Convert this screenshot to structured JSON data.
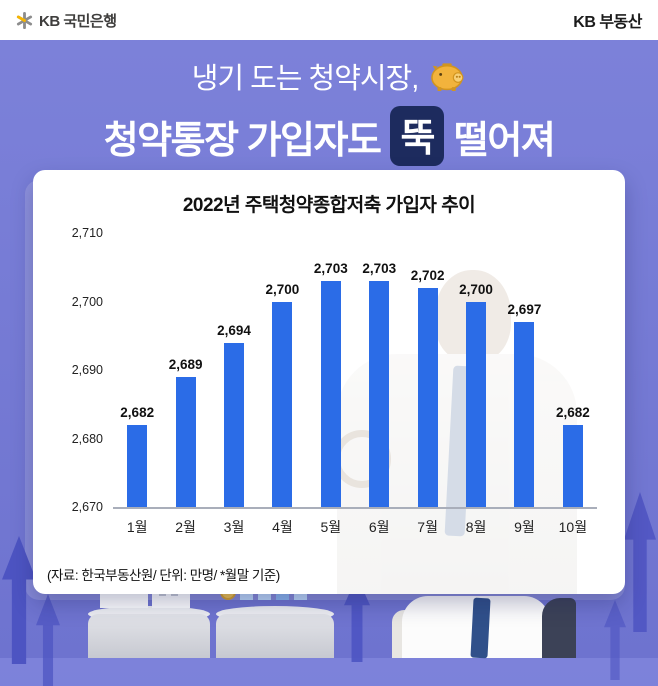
{
  "header": {
    "left_label": "KB 국민은행",
    "right_label": "KB 부동산"
  },
  "hero": {
    "line1": "냉기 도는 청약시장,",
    "line2_before": "청약통장 가입자도",
    "highlight": "뚝",
    "line2_after": "떨어져"
  },
  "chart_data": {
    "type": "bar",
    "title": "2022년 주택청약종합저축 가입자 추이",
    "categories": [
      "1월",
      "2월",
      "3월",
      "4월",
      "5월",
      "6월",
      "7월",
      "8월",
      "9월",
      "10월"
    ],
    "values": [
      2682,
      2689,
      2694,
      2700,
      2703,
      2703,
      2702,
      2700,
      2697,
      2682
    ],
    "value_labels": [
      "2,682",
      "2,689",
      "2,694",
      "2,700",
      "2,703",
      "2,703",
      "2,702",
      "2,700",
      "2,697",
      "2,682"
    ],
    "ylim": [
      2670,
      2710
    ],
    "yticks": [
      2670,
      2680,
      2690,
      2700,
      2710
    ],
    "ytick_labels": [
      "2,670",
      "2,680",
      "2,690",
      "2,700",
      "2,710"
    ],
    "xlabel": "",
    "ylabel": "",
    "unit": "만명",
    "grid": false,
    "legend": false
  },
  "footer": {
    "source": "(자료: 한국부동산원/ 단위: 만명/ *월말 기준)"
  },
  "colors": {
    "bg": "#7d82da",
    "bg2": "#6e73cf",
    "bar": "#2b6ce7",
    "hl": "#1d2b5e",
    "arrow": "#4d54c2"
  },
  "icons": {
    "logo": "kb-asterisk-icon",
    "piggy": "piggy-bank-icon"
  }
}
